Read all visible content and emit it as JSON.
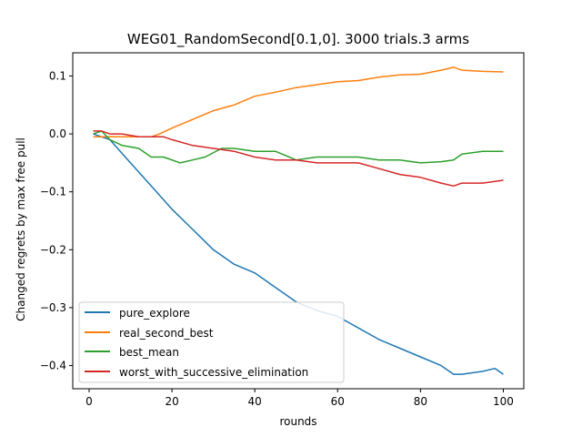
{
  "chart_data": {
    "type": "line",
    "title": "WEG01_RandomSecond[0.1,0]. 3000 trials.3 arms",
    "xlabel": "rounds",
    "ylabel": "Changed regrets by max free pull",
    "xlim": [
      -3.95,
      104.95
    ],
    "ylim": [
      -0.44,
      0.14
    ],
    "xticks": [
      0,
      20,
      40,
      60,
      80,
      100
    ],
    "xtick_labels": [
      "0",
      "20",
      "40",
      "60",
      "80",
      "100"
    ],
    "yticks": [
      0.1,
      0.0,
      -0.1,
      -0.2,
      -0.3,
      -0.4
    ],
    "ytick_labels": [
      "0.1",
      "0.0",
      "−0.1",
      "−0.2",
      "−0.3",
      "−0.4"
    ],
    "grid": false,
    "legend_position": "lower-left",
    "series": [
      {
        "name": "pure_explore",
        "color": "#1f77b4",
        "x": [
          1,
          5,
          10,
          15,
          20,
          25,
          30,
          35,
          40,
          45,
          50,
          55,
          60,
          65,
          70,
          75,
          80,
          85,
          88,
          90,
          95,
          98,
          100
        ],
        "y": [
          0.0,
          -0.01,
          -0.05,
          -0.09,
          -0.13,
          -0.165,
          -0.2,
          -0.225,
          -0.24,
          -0.265,
          -0.29,
          -0.305,
          -0.315,
          -0.335,
          -0.355,
          -0.37,
          -0.385,
          -0.4,
          -0.415,
          -0.415,
          -0.41,
          -0.405,
          -0.415
        ]
      },
      {
        "name": "real_second_best",
        "color": "#ff7f0e",
        "x": [
          1,
          5,
          10,
          15,
          17,
          20,
          25,
          30,
          35,
          40,
          45,
          50,
          55,
          60,
          65,
          70,
          75,
          80,
          85,
          88,
          90,
          95,
          100
        ],
        "y": [
          -0.005,
          -0.005,
          -0.005,
          -0.005,
          0.0,
          0.01,
          0.025,
          0.04,
          0.05,
          0.065,
          0.072,
          0.08,
          0.085,
          0.09,
          0.092,
          0.098,
          0.102,
          0.103,
          0.11,
          0.115,
          0.11,
          0.108,
          0.107
        ]
      },
      {
        "name": "best_mean",
        "color": "#2ca02c",
        "x": [
          1,
          3,
          5,
          8,
          12,
          15,
          18,
          22,
          25,
          28,
          32,
          35,
          40,
          45,
          50,
          55,
          60,
          65,
          70,
          75,
          80,
          85,
          88,
          90,
          95,
          100
        ],
        "y": [
          0.0,
          0.005,
          -0.01,
          -0.02,
          -0.025,
          -0.04,
          -0.04,
          -0.05,
          -0.045,
          -0.04,
          -0.025,
          -0.025,
          -0.03,
          -0.03,
          -0.045,
          -0.04,
          -0.04,
          -0.04,
          -0.045,
          -0.045,
          -0.05,
          -0.048,
          -0.045,
          -0.035,
          -0.03,
          -0.03
        ]
      },
      {
        "name": "worst_with_successive_elimination",
        "color": "#d62728",
        "x": [
          1,
          3,
          5,
          8,
          12,
          15,
          18,
          20,
          25,
          30,
          35,
          40,
          45,
          50,
          55,
          60,
          65,
          70,
          75,
          80,
          85,
          88,
          90,
          95,
          100
        ],
        "y": [
          0.005,
          0.005,
          0.0,
          0.0,
          -0.005,
          -0.005,
          -0.005,
          -0.01,
          -0.02,
          -0.025,
          -0.03,
          -0.04,
          -0.045,
          -0.045,
          -0.05,
          -0.05,
          -0.05,
          -0.06,
          -0.07,
          -0.075,
          -0.085,
          -0.09,
          -0.085,
          -0.085,
          -0.08
        ]
      }
    ]
  }
}
